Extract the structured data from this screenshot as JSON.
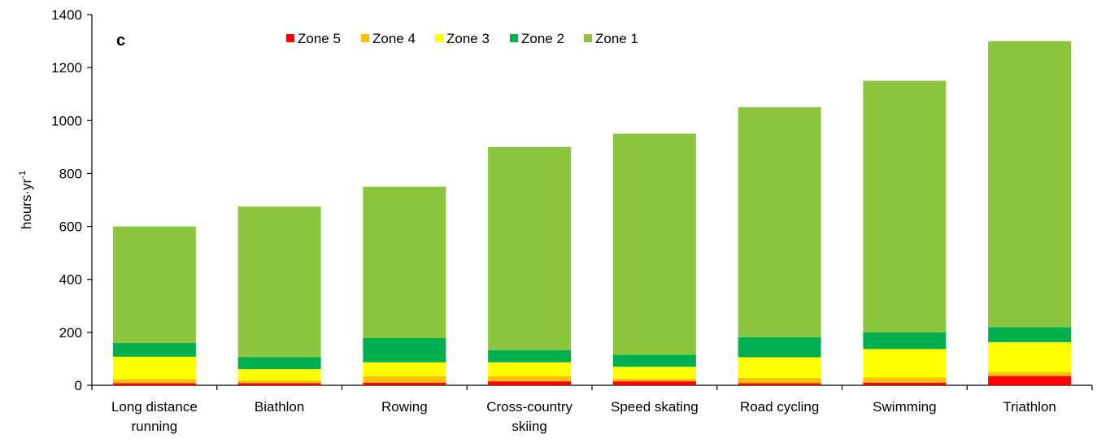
{
  "chart_data": {
    "type": "bar",
    "stacked": true,
    "panel_label": "c",
    "ylabel": "hours·yr",
    "ylabel_superscript": "-1",
    "ylim": [
      0,
      1400
    ],
    "yticks": [
      "0",
      "200",
      "400",
      "600",
      "800",
      "1000",
      "1200",
      "1400"
    ],
    "grid": false,
    "legend_position": "top",
    "categories": [
      [
        "Long distance",
        "running"
      ],
      [
        "Biathlon"
      ],
      [
        "Rowing"
      ],
      [
        "Cross-country",
        "skiing"
      ],
      [
        "Speed skating"
      ],
      [
        "Road cycling"
      ],
      [
        "Swimming"
      ],
      [
        "Triathlon"
      ]
    ],
    "series": [
      {
        "name": "Zone 5",
        "color": "#ff0000",
        "values": [
          8,
          8,
          10,
          15,
          15,
          8,
          10,
          35
        ]
      },
      {
        "name": "Zone 4",
        "color": "#ffc000",
        "values": [
          15,
          10,
          25,
          20,
          10,
          20,
          20,
          15
        ]
      },
      {
        "name": "Zone 3",
        "color": "#ffff00",
        "values": [
          85,
          43,
          52,
          52,
          45,
          78,
          107,
          113
        ]
      },
      {
        "name": "Zone 2",
        "color": "#00b050",
        "values": [
          52,
          46,
          91,
          46,
          45,
          76,
          63,
          57
        ]
      },
      {
        "name": "Zone 1",
        "color": "#8cc63f",
        "values": [
          440,
          568,
          572,
          767,
          835,
          868,
          950,
          1080
        ]
      }
    ],
    "legend_order": [
      "Zone 5",
      "Zone 4",
      "Zone 3",
      "Zone 2",
      "Zone 1"
    ]
  }
}
